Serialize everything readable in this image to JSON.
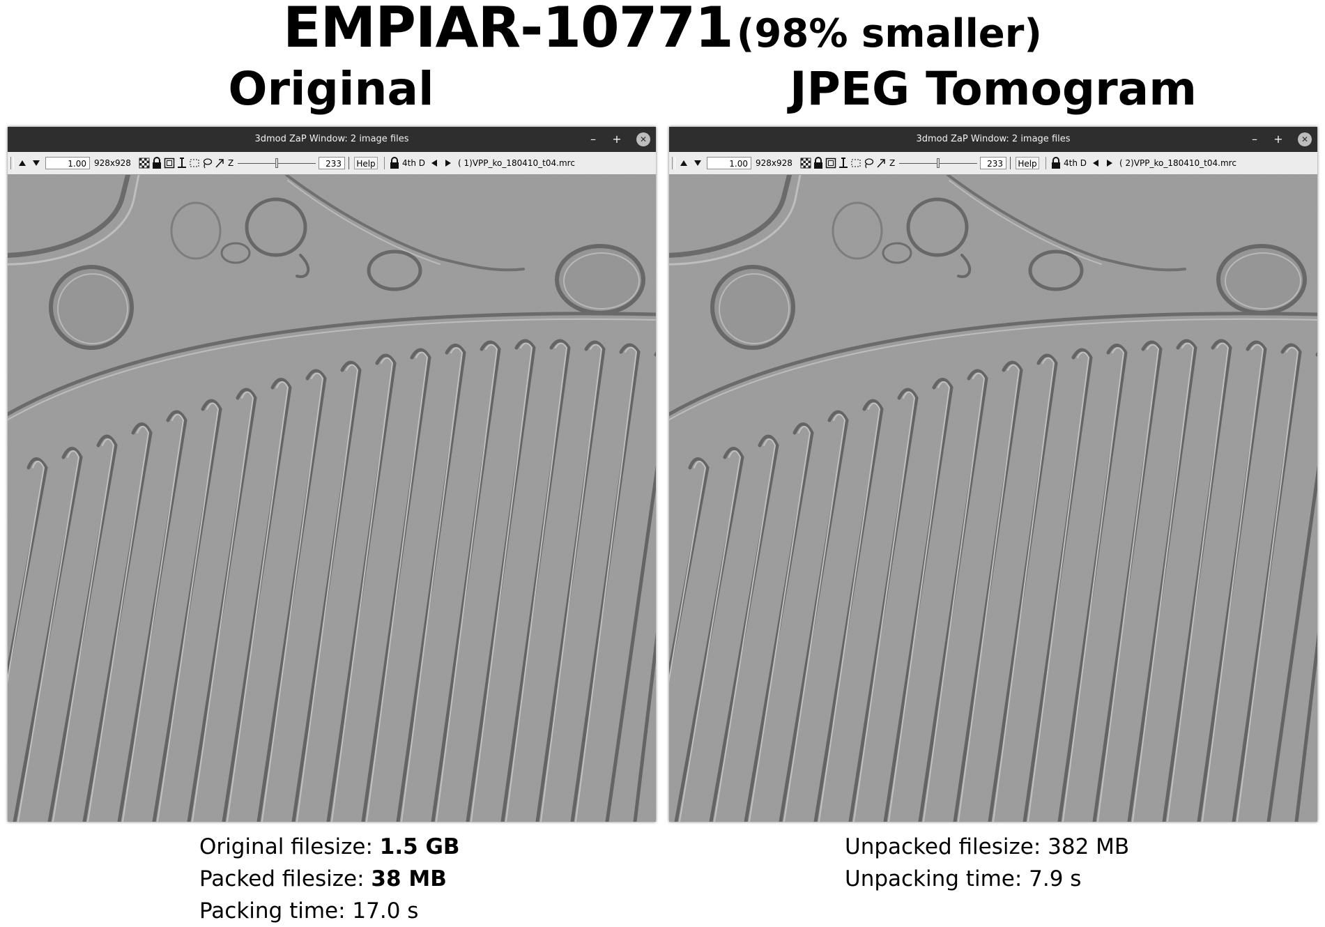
{
  "header": {
    "title": "EMPIAR-10771",
    "subtitle": "(98% smaller)"
  },
  "panels": [
    {
      "heading": "Original",
      "window_title": "3dmod ZaP Window: 2 image files",
      "toolbar": {
        "zoom": "1.00",
        "size": "928x928",
        "z_label": "Z",
        "z_value": "233",
        "help": "Help",
        "mode": "4th D",
        "file": "(  1)VPP_ko_180410_t04.mrc"
      }
    },
    {
      "heading": "JPEG Tomogram",
      "window_title": "3dmod ZaP Window: 2 image files",
      "toolbar": {
        "zoom": "1.00",
        "size": "928x928",
        "z_label": "Z",
        "z_value": "233",
        "help": "Help",
        "mode": "4th D",
        "file": "(  2)VPP_ko_180410_t04.mrc"
      }
    }
  ],
  "stats_left": {
    "original_label": "Original filesize: ",
    "original_value": "1.5 GB",
    "packed_label": "Packed filesize: ",
    "packed_value": "38 MB",
    "packing_time": "Packing time: 17.0 s"
  },
  "stats_right": {
    "unpacked_size": "Unpacked filesize: 382 MB",
    "unpacking_time": "Unpacking time: 7.9 s"
  },
  "colors": {
    "titlebar": "#2e2e2e",
    "toolbar": "#ececec",
    "tomogram_gray": "#a9a9a9"
  }
}
